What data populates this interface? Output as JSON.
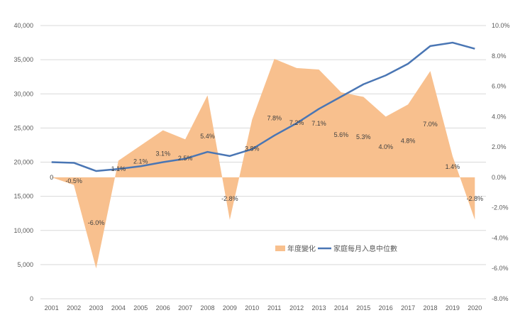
{
  "chart_data": {
    "type": "area+line",
    "title": "",
    "categories": [
      "2001",
      "2002",
      "2003",
      "2004",
      "2005",
      "2006",
      "2007",
      "2008",
      "2009",
      "2010",
      "2011",
      "2012",
      "2013",
      "2014",
      "2015",
      "2016",
      "2017",
      "2018",
      "2019",
      "2020"
    ],
    "series": [
      {
        "name": "年度變化",
        "type": "area",
        "axis": "right",
        "color": "#F8C08E",
        "values": [
          0,
          -0.5,
          -6.0,
          1.1,
          2.1,
          3.1,
          2.5,
          5.4,
          -2.8,
          3.8,
          7.8,
          7.2,
          7.1,
          5.6,
          5.3,
          4.0,
          4.8,
          7.0,
          1.4,
          -2.8
        ],
        "labels": [
          "0",
          "-0.5%",
          "-6.0%",
          "1.1%",
          "2.1%",
          "3.1%",
          "2.5%",
          "5.4%",
          "-2.8%",
          "3.8%",
          "7.8%",
          "7.2%",
          "7.1%",
          "5.6%",
          "5.3%",
          "4.0%",
          "4.8%",
          "7.0%",
          "1.4%",
          "-2.8%"
        ]
      },
      {
        "name": "家庭每月入息中位數",
        "type": "line",
        "axis": "left",
        "color": "#4A76B4",
        "values": [
          20000,
          19900,
          18700,
          19000,
          19400,
          20000,
          20500,
          21500,
          20900,
          21900,
          23900,
          25700,
          27800,
          29600,
          31400,
          32700,
          34400,
          37000,
          37500,
          36600
        ]
      }
    ],
    "left_axis": {
      "min": 0,
      "max": 40000,
      "ticks": [
        "0",
        "5,000",
        "10,000",
        "15,000",
        "20,000",
        "25,000",
        "30,000",
        "35,000",
        "40,000"
      ]
    },
    "right_axis": {
      "min": -8,
      "max": 10,
      "ticks": [
        "-8.0%",
        "-6.0%",
        "-4.0%",
        "-2.0%",
        "0.0%",
        "2.0%",
        "4.0%",
        "6.0%",
        "8.0%",
        "10.0%"
      ]
    },
    "grid": true,
    "legend": "bottom-center-inside"
  }
}
